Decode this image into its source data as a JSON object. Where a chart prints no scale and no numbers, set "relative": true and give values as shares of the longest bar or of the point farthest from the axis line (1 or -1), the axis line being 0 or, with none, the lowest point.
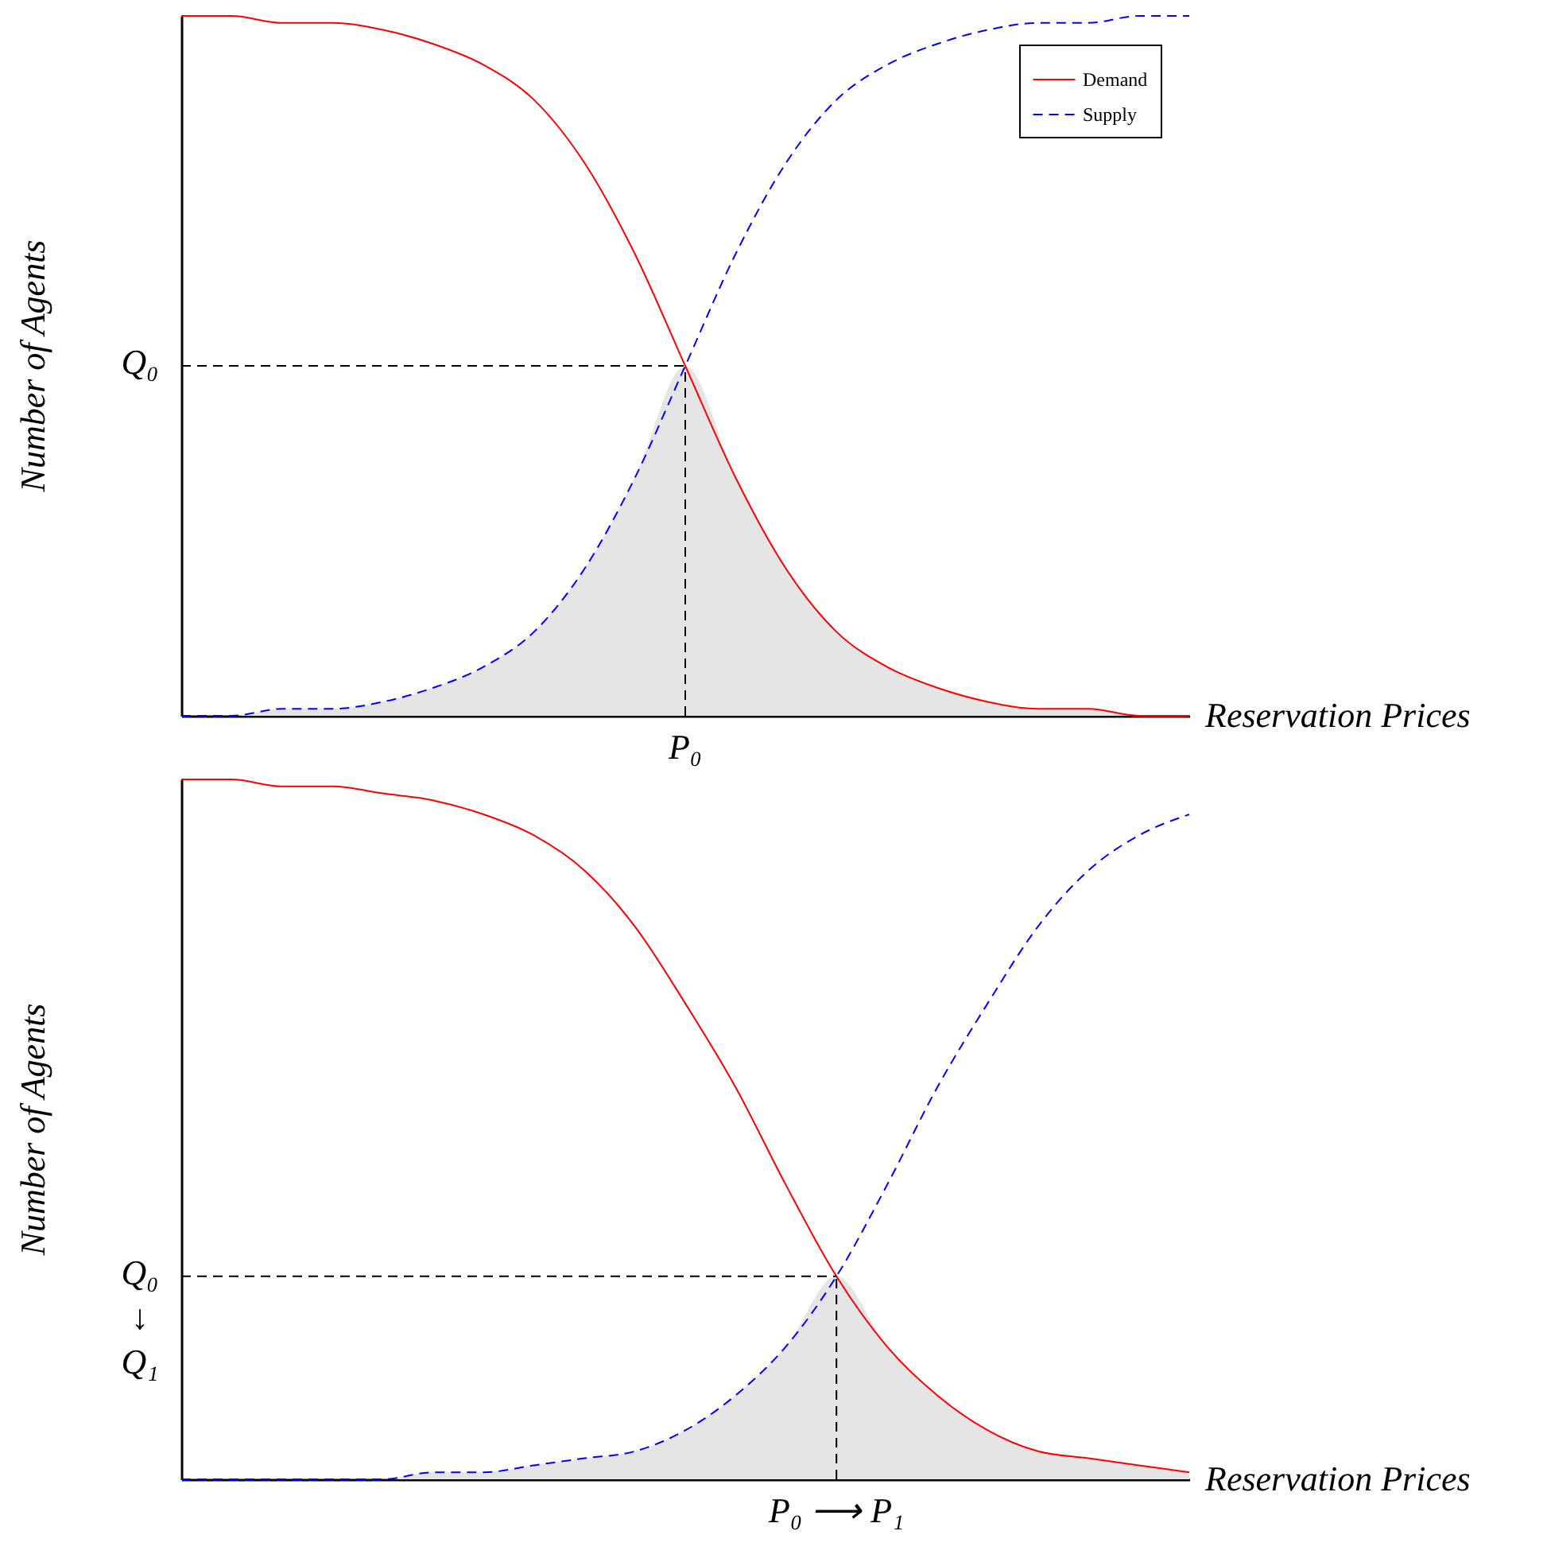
{
  "chart_data": [
    {
      "type": "line",
      "relative": true,
      "xlabel": "Reservation Prices",
      "ylabel": "Number of Agents",
      "legend": "top right",
      "categories": [
        null,
        null,
        null,
        null,
        null,
        null,
        null,
        null,
        null,
        null,
        null,
        null,
        null,
        null,
        null,
        null,
        null,
        null,
        null,
        null,
        null
      ],
      "series": [
        {
          "type": "area",
          "color": "#e5e5e5",
          "values": [
            0,
            0,
            0.01,
            0.01,
            0.02,
            0.04,
            0.07,
            0.12,
            0.21,
            0.34,
            0.5,
            0.34,
            0.21,
            0.12,
            0.07,
            0.04,
            0.02,
            0.01,
            0.01,
            0,
            0
          ]
        },
        {
          "name": "Demand",
          "color": "#ff0000",
          "line_style": "solid",
          "values": [
            1,
            1,
            0.99,
            0.99,
            0.98,
            0.96,
            0.93,
            0.88,
            0.79,
            0.66,
            0.5,
            0.34,
            0.21,
            0.12,
            0.07,
            0.04,
            0.02,
            0.01,
            0.01,
            0,
            0
          ]
        },
        {
          "name": "Supply",
          "color": "#0000ff",
          "line_style": "dashed",
          "values": [
            0,
            0,
            0.01,
            0.01,
            0.02,
            0.04,
            0.07,
            0.12,
            0.21,
            0.34,
            0.5,
            0.66,
            0.79,
            0.88,
            0.93,
            0.96,
            0.98,
            0.99,
            0.99,
            1,
            1
          ]
        }
      ],
      "ref_lines": [
        {
          "axis": "y",
          "value": 0.5,
          "label": "Q₀",
          "color": "#000000",
          "line_style": "dashed"
        }
      ],
      "annotations": [
        "P₀"
      ]
    },
    {
      "type": "line",
      "relative": true,
      "xlabel": "Reservation Prices",
      "ylabel": "Number of Agents",
      "categories": [
        null,
        null,
        null,
        null,
        null,
        null,
        null,
        null,
        null,
        null,
        null,
        null,
        null,
        null,
        null,
        null,
        null,
        null,
        null,
        null,
        null
      ],
      "series": [
        {
          "type": "area",
          "color": "#e5e5e5",
          "values": [
            0,
            0,
            0,
            0,
            0,
            0.01,
            0.01,
            0.02,
            0.03,
            0.04,
            0.07,
            0.12,
            0.19,
            0.29,
            0.19,
            0.12,
            0.07,
            0.04,
            0.03,
            0.02,
            0.01
          ]
        },
        {
          "color": "#ff0000",
          "line_style": "solid",
          "values": [
            1,
            1,
            0.99,
            0.99,
            0.98,
            0.97,
            0.95,
            0.92,
            0.87,
            0.79,
            0.68,
            0.56,
            0.42,
            0.29,
            0.19,
            0.12,
            0.07,
            0.04,
            0.03,
            0.02,
            0.01
          ]
        },
        {
          "color": "#0000ff",
          "line_style": "dashed",
          "values": [
            0,
            0,
            0,
            0,
            0,
            0.01,
            0.01,
            0.02,
            0.03,
            0.04,
            0.07,
            0.12,
            0.19,
            0.29,
            0.42,
            0.56,
            0.68,
            0.79,
            0.87,
            0.92,
            0.95
          ]
        }
      ],
      "ref_lines": [
        {
          "axis": "y",
          "value": 0.29,
          "label": "Q₀\n↓\nQ₁",
          "color": "#000000",
          "line_style": "dashed"
        }
      ],
      "annotations": [
        "P₀ ⟶ P₁"
      ]
    }
  ]
}
